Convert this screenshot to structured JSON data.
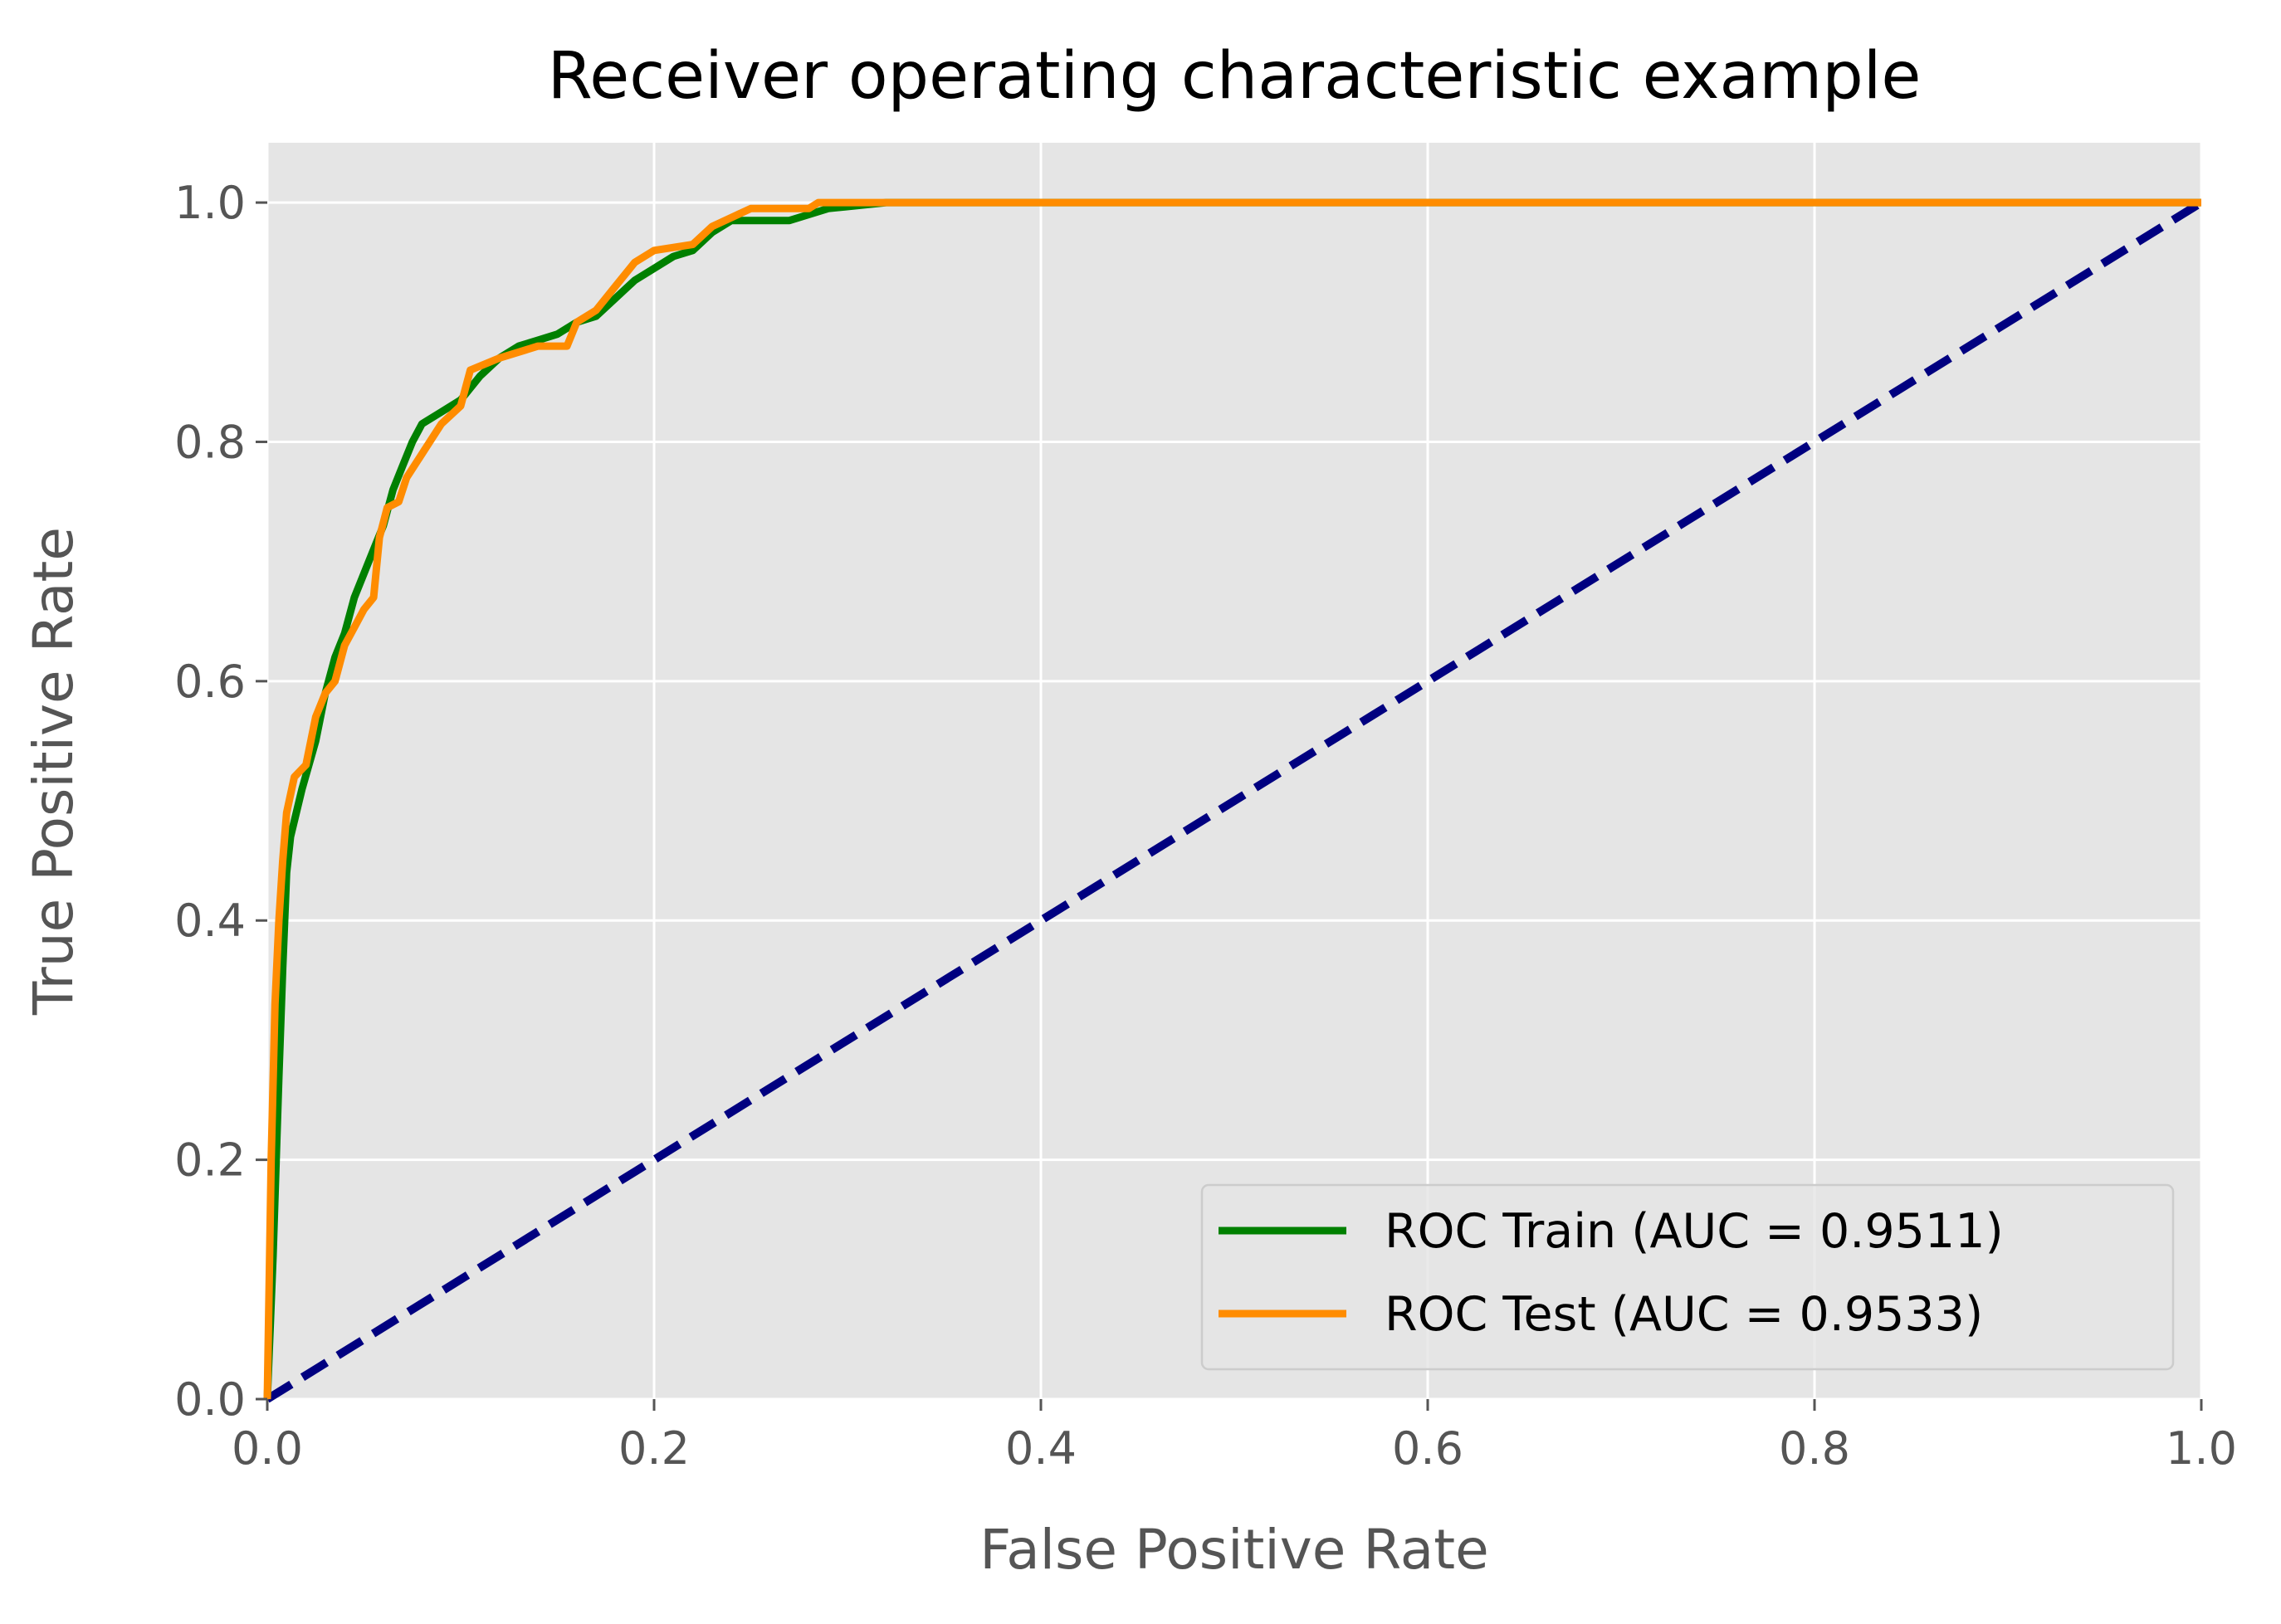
{
  "chart_data": {
    "type": "line",
    "title": "Receiver operating characteristic example",
    "xlabel": "False Positive Rate",
    "ylabel": "True Positive Rate",
    "xlim": [
      0.0,
      1.0
    ],
    "ylim": [
      0.0,
      1.05
    ],
    "x_ticks": [
      0.0,
      0.2,
      0.4,
      0.6,
      0.8,
      1.0
    ],
    "y_ticks": [
      0.0,
      0.2,
      0.4,
      0.6,
      0.8,
      1.0
    ],
    "x_tick_labels": [
      "0.0",
      "0.2",
      "0.4",
      "0.6",
      "0.8",
      "1.0"
    ],
    "y_tick_labels": [
      "0.0",
      "0.2",
      "0.4",
      "0.6",
      "0.8",
      "1.0"
    ],
    "grid": true,
    "legend_position": "lower-right",
    "series": [
      {
        "name": "ROC Train (AUC = 0.9511)",
        "color": "#008000",
        "style": "solid",
        "points": [
          [
            0.0,
            0.0
          ],
          [
            0.003,
            0.12
          ],
          [
            0.006,
            0.27
          ],
          [
            0.008,
            0.36
          ],
          [
            0.01,
            0.44
          ],
          [
            0.012,
            0.47
          ],
          [
            0.018,
            0.51
          ],
          [
            0.025,
            0.55
          ],
          [
            0.03,
            0.59
          ],
          [
            0.035,
            0.62
          ],
          [
            0.04,
            0.64
          ],
          [
            0.045,
            0.67
          ],
          [
            0.05,
            0.69
          ],
          [
            0.055,
            0.71
          ],
          [
            0.06,
            0.73
          ],
          [
            0.065,
            0.76
          ],
          [
            0.07,
            0.78
          ],
          [
            0.075,
            0.8
          ],
          [
            0.08,
            0.815
          ],
          [
            0.09,
            0.825
          ],
          [
            0.1,
            0.835
          ],
          [
            0.11,
            0.855
          ],
          [
            0.12,
            0.87
          ],
          [
            0.13,
            0.88
          ],
          [
            0.14,
            0.885
          ],
          [
            0.15,
            0.89
          ],
          [
            0.16,
            0.9
          ],
          [
            0.17,
            0.905
          ],
          [
            0.18,
            0.92
          ],
          [
            0.19,
            0.935
          ],
          [
            0.2,
            0.945
          ],
          [
            0.21,
            0.955
          ],
          [
            0.22,
            0.96
          ],
          [
            0.23,
            0.975
          ],
          [
            0.24,
            0.985
          ],
          [
            0.27,
            0.985
          ],
          [
            0.29,
            0.995
          ],
          [
            0.32,
            1.0
          ],
          [
            0.62,
            1.0
          ],
          [
            1.0,
            1.0
          ]
        ]
      },
      {
        "name": "ROC Test (AUC = 0.9533)",
        "color": "#ff8c00",
        "style": "solid",
        "points": [
          [
            0.0,
            0.0
          ],
          [
            0.002,
            0.2
          ],
          [
            0.004,
            0.33
          ],
          [
            0.006,
            0.4
          ],
          [
            0.008,
            0.45
          ],
          [
            0.01,
            0.49
          ],
          [
            0.014,
            0.52
          ],
          [
            0.02,
            0.53
          ],
          [
            0.025,
            0.57
          ],
          [
            0.03,
            0.59
          ],
          [
            0.035,
            0.6
          ],
          [
            0.04,
            0.63
          ],
          [
            0.045,
            0.645
          ],
          [
            0.05,
            0.66
          ],
          [
            0.055,
            0.67
          ],
          [
            0.058,
            0.72
          ],
          [
            0.062,
            0.745
          ],
          [
            0.068,
            0.75
          ],
          [
            0.072,
            0.77
          ],
          [
            0.08,
            0.79
          ],
          [
            0.09,
            0.815
          ],
          [
            0.1,
            0.83
          ],
          [
            0.105,
            0.86
          ],
          [
            0.12,
            0.87
          ],
          [
            0.14,
            0.88
          ],
          [
            0.155,
            0.88
          ],
          [
            0.16,
            0.9
          ],
          [
            0.17,
            0.91
          ],
          [
            0.18,
            0.93
          ],
          [
            0.19,
            0.95
          ],
          [
            0.2,
            0.96
          ],
          [
            0.22,
            0.965
          ],
          [
            0.23,
            0.98
          ],
          [
            0.25,
            0.995
          ],
          [
            0.28,
            0.995
          ],
          [
            0.285,
            1.0
          ],
          [
            1.0,
            1.0
          ]
        ]
      },
      {
        "name": "",
        "color": "#000080",
        "style": "dashed",
        "points": [
          [
            0.0,
            0.0
          ],
          [
            1.0,
            1.0
          ]
        ]
      }
    ]
  }
}
